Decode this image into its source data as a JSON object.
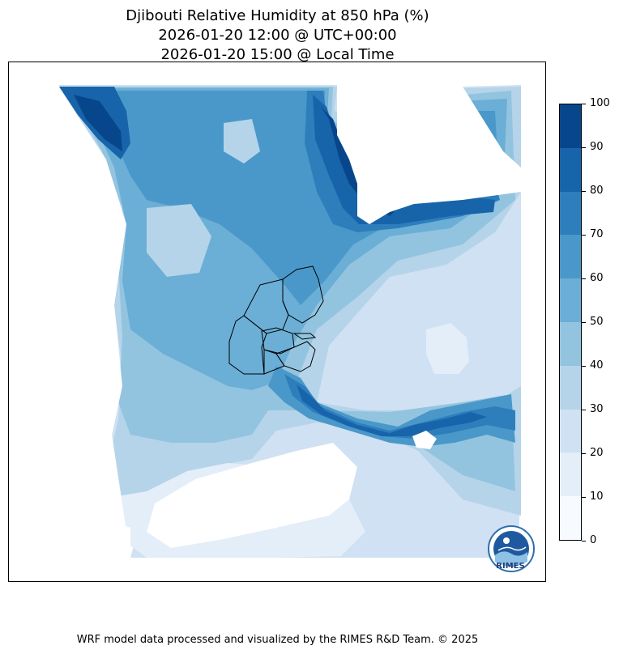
{
  "title": {
    "line1": "Djibouti Relative Humidity at 850 hPa (%)",
    "line2": "2026-01-20 12:00 @ UTC+00:00",
    "line3": "2026-01-20 15:00 @ Local Time"
  },
  "colorbar": {
    "ticks": [
      "0",
      "10",
      "20",
      "30",
      "40",
      "50",
      "60",
      "70",
      "80",
      "90",
      "100"
    ],
    "colors": [
      "#f7fbff",
      "#e3eef9",
      "#cfe1f2",
      "#b5d4e9",
      "#93c4df",
      "#6baed6",
      "#4a98c9",
      "#2e7ebc",
      "#1764ab",
      "#08468b"
    ]
  },
  "logo": {
    "text": "RIMES"
  },
  "footer": {
    "credit": "WRF model data processed and visualized by the RIMES R&D Team. © 2025"
  }
}
